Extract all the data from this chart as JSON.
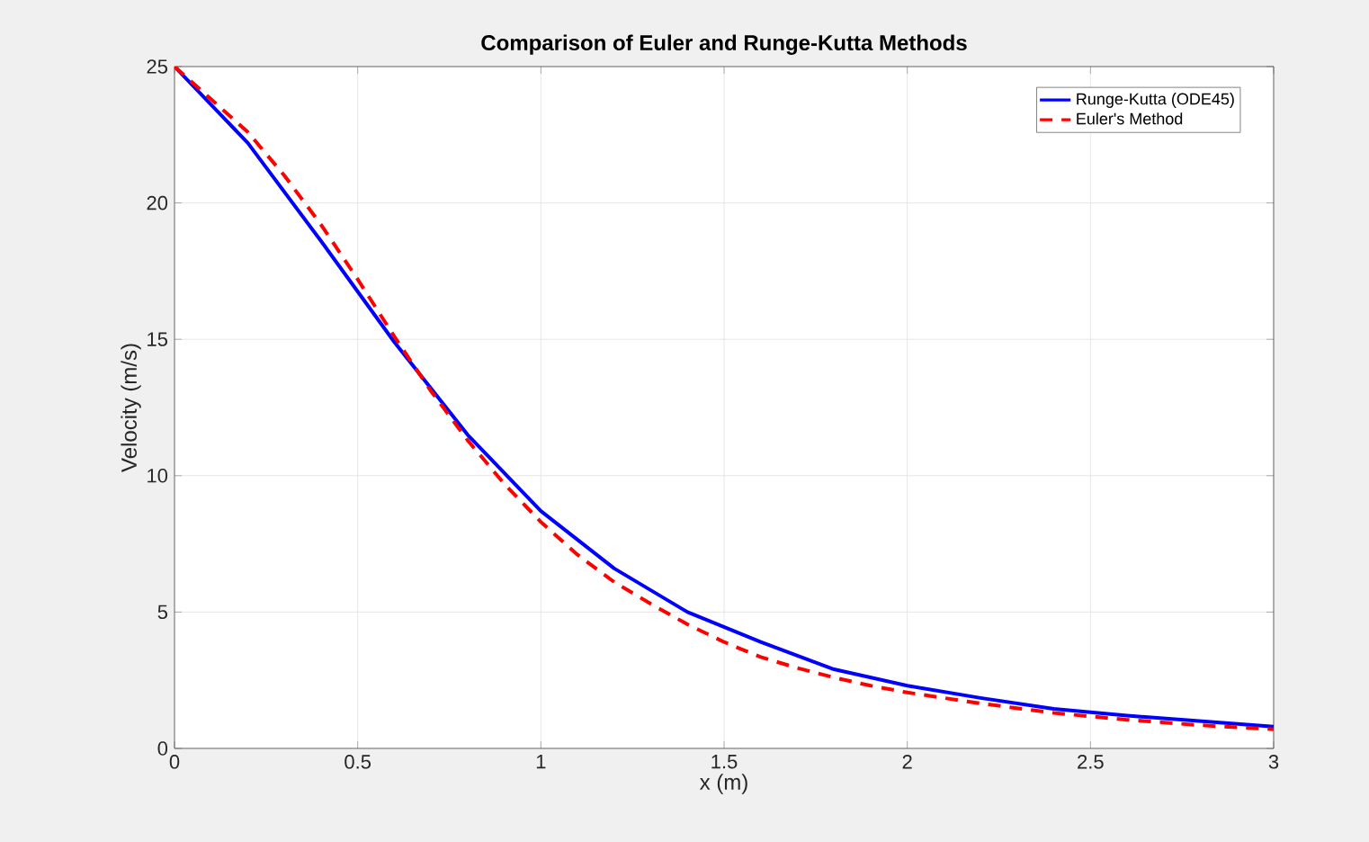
{
  "chart_data": {
    "type": "line",
    "title": "**Comparison of Euler and Runge-Kutta Methods**",
    "xlabel": "x (m)",
    "ylabel": "Velocity (m/s)",
    "xlim": [
      0,
      3
    ],
    "ylim": [
      0,
      25
    ],
    "xticks": [
      0,
      0.5,
      1,
      1.5,
      2,
      2.5,
      3
    ],
    "yticks": [
      0,
      5,
      10,
      15,
      20,
      25
    ],
    "grid": true,
    "legend": "top right",
    "series": [
      {
        "name": "Runge-Kutta (ODE45)",
        "color": "#0000ff",
        "line_style": "solid",
        "x": [
          0,
          0.2,
          0.4,
          0.6,
          0.8,
          1.0,
          1.2,
          1.4,
          1.6,
          1.8,
          2.0,
          2.2,
          2.4,
          2.6,
          2.8,
          3.0
        ],
        "values": [
          25,
          22.2,
          18.6,
          14.9,
          11.5,
          8.7,
          6.6,
          5.0,
          3.9,
          2.9,
          2.3,
          1.85,
          1.45,
          1.2,
          1.0,
          0.8
        ]
      },
      {
        "name": "Euler's Method",
        "color": "#ff0000",
        "line_style": "dashed",
        "x": [
          0,
          0.1,
          0.2,
          0.3,
          0.4,
          0.5,
          0.6,
          0.7,
          0.8,
          0.9,
          1.0,
          1.1,
          1.2,
          1.3,
          1.4,
          1.5,
          1.6,
          1.7,
          1.8,
          1.9,
          2.0,
          2.2,
          2.4,
          2.6,
          2.8,
          3.0
        ],
        "values": [
          25,
          23.8,
          22.6,
          21.0,
          19.2,
          17.2,
          15.1,
          13.1,
          11.3,
          9.7,
          8.3,
          7.1,
          6.1,
          5.3,
          4.55,
          3.9,
          3.35,
          2.95,
          2.6,
          2.3,
          2.05,
          1.65,
          1.3,
          1.05,
          0.85,
          0.7
        ]
      }
    ]
  }
}
